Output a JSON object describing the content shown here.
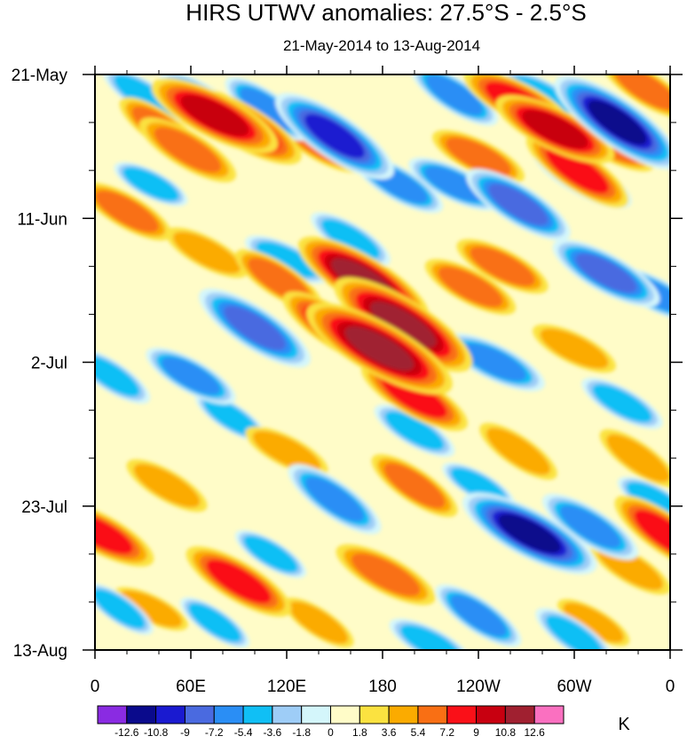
{
  "chart_data": {
    "type": "heatmap",
    "title": "HIRS UTWV anomalies: 27.5°S - 2.5°S",
    "subtitle": "21-May-2014 to 13-Aug-2014",
    "x_axis": {
      "ticks": [
        "0",
        "60E",
        "120E",
        "180",
        "120W",
        "60W",
        "0"
      ],
      "range_deg": [
        0,
        360
      ]
    },
    "y_axis": {
      "ticks": [
        "21-May",
        "11-Jun",
        "2-Jul",
        "23-Jul",
        "13-Aug"
      ],
      "range_days": [
        0,
        84
      ]
    },
    "colorbar": {
      "unit": "K",
      "levels": [
        "-12.6",
        "-10.8",
        "-9",
        "-7.2",
        "-5.4",
        "-3.6",
        "-1.8",
        "0",
        "1.8",
        "3.6",
        "5.4",
        "7.2",
        "9",
        "10.8",
        "12.6"
      ],
      "colors": [
        "#8a2be2",
        "#0a0a8c",
        "#1a1ad0",
        "#4a6ae0",
        "#2a8ef5",
        "#10bff5",
        "#9ecdf7",
        "#d4f6fb",
        "#fffcc8",
        "#fbe240",
        "#fbab00",
        "#f96f14",
        "#fa1018",
        "#c80010",
        "#a02030",
        "#fa70c0"
      ]
    },
    "features": [
      {
        "lon": 75,
        "day": 6,
        "value": 10
      },
      {
        "lon": 92,
        "day": 7.5,
        "value": 9.5
      },
      {
        "lon": 58,
        "day": 11,
        "value": 7
      },
      {
        "lon": 42,
        "day": 8,
        "value": 6
      },
      {
        "lon": 168,
        "day": 30,
        "value": 11
      },
      {
        "lon": 193,
        "day": 36.5,
        "value": 12
      },
      {
        "lon": 178,
        "day": 40,
        "value": 12.5
      },
      {
        "lon": 150,
        "day": 37,
        "value": 8
      },
      {
        "lon": 200,
        "day": 47,
        "value": 8
      },
      {
        "lon": 288,
        "day": 8,
        "value": 9
      },
      {
        "lon": 265,
        "day": 4,
        "value": 8
      },
      {
        "lon": 302,
        "day": 14,
        "value": 8
      },
      {
        "lon": 345,
        "day": 2,
        "value": 6
      },
      {
        "lon": 322,
        "day": 10,
        "value": 6
      },
      {
        "lon": 240,
        "day": 12,
        "value": 6
      },
      {
        "lon": 115,
        "day": 30,
        "value": 6
      },
      {
        "lon": 90,
        "day": 74,
        "value": 8
      },
      {
        "lon": 182,
        "day": 73,
        "value": 7
      },
      {
        "lon": 3,
        "day": 67,
        "value": 8
      },
      {
        "lon": 357,
        "day": 67,
        "value": 8
      },
      {
        "lon": 20,
        "day": 20,
        "value": 6
      },
      {
        "lon": 255,
        "day": 28,
        "value": 6
      },
      {
        "lon": 200,
        "day": 60,
        "value": 6
      },
      {
        "lon": 300,
        "day": 40,
        "value": 5
      },
      {
        "lon": 140,
        "day": 10,
        "value": 6
      },
      {
        "lon": 235,
        "day": 31,
        "value": 6
      },
      {
        "lon": 330,
        "day": 30,
        "value": 5
      },
      {
        "lon": 45,
        "day": 60,
        "value": 5
      },
      {
        "lon": 120,
        "day": 55,
        "value": 5
      },
      {
        "lon": 35,
        "day": 78,
        "value": 4
      },
      {
        "lon": 265,
        "day": 55,
        "value": 5
      },
      {
        "lon": 140,
        "day": 80,
        "value": 4
      },
      {
        "lon": 335,
        "day": 72,
        "value": 5
      },
      {
        "lon": 70,
        "day": 26,
        "value": 5
      },
      {
        "lon": 312,
        "day": 80,
        "value": 4
      },
      {
        "lon": 340,
        "day": 56,
        "value": 5
      },
      {
        "lon": 150,
        "day": 9,
        "value": -10
      },
      {
        "lon": 108,
        "day": 5,
        "value": -6
      },
      {
        "lon": 68,
        "day": 4,
        "value": -6
      },
      {
        "lon": 30,
        "day": 3,
        "value": -5
      },
      {
        "lon": 100,
        "day": 37,
        "value": -9
      },
      {
        "lon": 60,
        "day": 44,
        "value": -6
      },
      {
        "lon": 150,
        "day": 62,
        "value": -7
      },
      {
        "lon": 272,
        "day": 67,
        "value": -11
      },
      {
        "lon": 310,
        "day": 66,
        "value": -7
      },
      {
        "lon": 327,
        "day": 7,
        "value": -11
      },
      {
        "lon": 305,
        "day": 15,
        "value": -7
      },
      {
        "lon": 265,
        "day": 19,
        "value": -8
      },
      {
        "lon": 225,
        "day": 16,
        "value": -6
      },
      {
        "lon": 225,
        "day": 3,
        "value": -6
      },
      {
        "lon": 190,
        "day": 16,
        "value": -6
      },
      {
        "lon": 250,
        "day": 42,
        "value": -7
      },
      {
        "lon": 320,
        "day": 29,
        "value": -8
      },
      {
        "lon": 350,
        "day": 32,
        "value": -6
      },
      {
        "lon": 330,
        "day": 48,
        "value": -5
      },
      {
        "lon": 240,
        "day": 79,
        "value": -6
      },
      {
        "lon": 35,
        "day": 16,
        "value": -4
      },
      {
        "lon": 120,
        "day": 27,
        "value": -5
      },
      {
        "lon": 10,
        "day": 44,
        "value": -5
      },
      {
        "lon": 75,
        "day": 80,
        "value": -4
      },
      {
        "lon": 200,
        "day": 52,
        "value": -5
      },
      {
        "lon": 110,
        "day": 70,
        "value": -4
      },
      {
        "lon": 210,
        "day": 83,
        "value": -5
      },
      {
        "lon": 300,
        "day": 82,
        "value": -5
      },
      {
        "lon": 350,
        "day": 62,
        "value": -4
      },
      {
        "lon": 15,
        "day": 78,
        "value": -4
      },
      {
        "lon": 85,
        "day": 50,
        "value": -4
      },
      {
        "lon": 240,
        "day": 60,
        "value": -4
      },
      {
        "lon": 160,
        "day": 24,
        "value": -5
      },
      {
        "lon": 280,
        "day": 3,
        "value": -5
      }
    ]
  }
}
